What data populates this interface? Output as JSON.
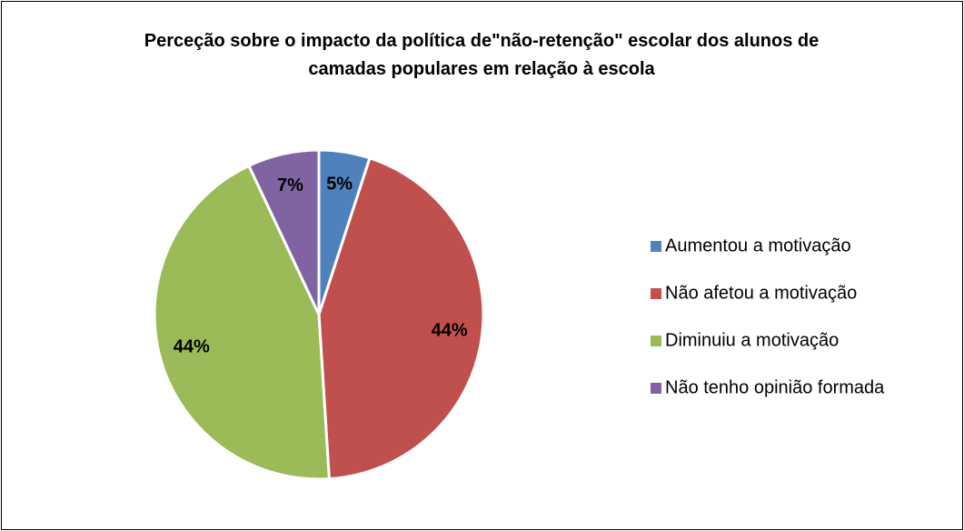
{
  "chart_data": {
    "type": "pie",
    "title": "Perceção sobre o impacto da política de\"não-retenção\" escolar dos alunos de camadas populares em relação à escola",
    "categories": [
      "Aumentou a motivação",
      "Não afetou a motivação",
      "Diminuiu a motivação",
      "Não tenho opinião formada"
    ],
    "values": [
      5,
      44,
      44,
      7
    ],
    "value_labels": [
      "5%",
      "44%",
      "44%",
      "7%"
    ],
    "colors": [
      "#4f81bd",
      "#c0504d",
      "#9bbb59",
      "#8064a2"
    ],
    "legend": "right"
  }
}
